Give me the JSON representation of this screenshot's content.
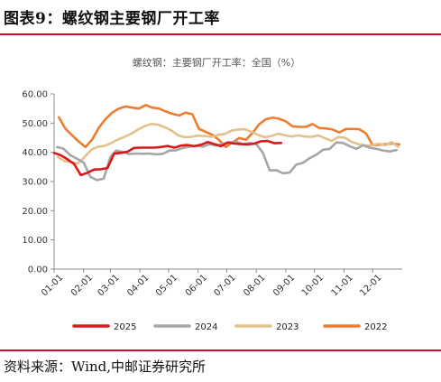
{
  "figure": {
    "title": "图表9：螺纹钢主要钢厂开工率",
    "source": "资料来源：Wind,中邮证券研究所"
  },
  "chart_data": {
    "type": "line",
    "title": "螺纹钢：主要钢厂开工率：全国（%）",
    "ylim": [
      0,
      60
    ],
    "yticks": [
      "0.00",
      "10.00",
      "20.00",
      "30.00",
      "40.00",
      "50.00",
      "60.00"
    ],
    "xlim": [
      "01-01",
      "12-31"
    ],
    "xticks": [
      "01-01",
      "02-01",
      "03-01",
      "04-01",
      "05-01",
      "06-01",
      "07-01",
      "08-01",
      "09-01",
      "10-01",
      "11-01",
      "12-01"
    ],
    "legend_position": "bottom",
    "grid": false,
    "series": [
      {
        "name": "2025",
        "color": "#d7191c",
        "x": [
          "01-01",
          "01-08",
          "01-15",
          "01-22",
          "01-29",
          "02-05",
          "02-12",
          "02-19",
          "02-26",
          "03-05",
          "03-12",
          "03-19",
          "03-26",
          "04-02",
          "04-09",
          "04-16",
          "04-23",
          "04-30",
          "05-07",
          "05-14",
          "05-21",
          "05-28",
          "06-04",
          "06-11",
          "06-18",
          "06-25",
          "07-02",
          "07-09",
          "07-16",
          "07-23",
          "07-30",
          "08-06",
          "08-13",
          "08-20",
          "08-27"
        ],
        "values": [
          39.8,
          39.0,
          37.6,
          36.0,
          32.2,
          33.0,
          34.1,
          34.2,
          34.6,
          39.6,
          39.8,
          40.2,
          41.5,
          41.6,
          41.6,
          41.6,
          41.8,
          42.2,
          41.6,
          42.3,
          42.5,
          42.1,
          42.6,
          43.5,
          42.8,
          42.1,
          43.4,
          43.0,
          42.8,
          42.7,
          43.0,
          43.8,
          43.9,
          43.1,
          43.2
        ]
      },
      {
        "name": "2024",
        "color": "#a6a6a6",
        "x": [
          "01-04",
          "01-11",
          "01-18",
          "01-25",
          "02-01",
          "02-08",
          "02-15",
          "02-22",
          "02-29",
          "03-07",
          "03-14",
          "03-21",
          "03-28",
          "04-04",
          "04-11",
          "04-18",
          "04-25",
          "05-02",
          "05-09",
          "05-16",
          "05-23",
          "05-30",
          "06-06",
          "06-13",
          "06-20",
          "06-27",
          "07-04",
          "07-11",
          "07-18",
          "07-25",
          "08-01",
          "08-08",
          "08-15",
          "08-22",
          "08-29",
          "09-05",
          "09-12",
          "09-19",
          "09-26",
          "10-03",
          "10-10",
          "10-17",
          "10-24",
          "10-31",
          "11-07",
          "11-14",
          "11-21",
          "11-28",
          "12-05",
          "12-12",
          "12-19",
          "12-26"
        ],
        "values": [
          41.8,
          41.2,
          39.0,
          37.8,
          36.5,
          31.6,
          30.5,
          31.0,
          38.4,
          40.6,
          40.1,
          39.4,
          39.6,
          39.5,
          39.6,
          39.3,
          39.5,
          40.6,
          40.7,
          41.5,
          41.9,
          42.3,
          41.9,
          42.8,
          42.3,
          42.9,
          43.4,
          43.6,
          42.8,
          43.2,
          42.8,
          39.8,
          33.8,
          33.9,
          32.8,
          33.1,
          35.8,
          36.4,
          38.0,
          39.2,
          40.9,
          41.2,
          43.4,
          43.2,
          42.1,
          41.2,
          42.4,
          41.6,
          41.2,
          40.6,
          40.3,
          40.8
        ]
      },
      {
        "name": "2023",
        "color": "#e2c18d",
        "x": [
          "01-05",
          "01-12",
          "01-19",
          "01-26",
          "02-02",
          "02-09",
          "02-16",
          "02-23",
          "03-02",
          "03-09",
          "03-16",
          "03-23",
          "03-30",
          "04-06",
          "04-13",
          "04-20",
          "04-27",
          "05-04",
          "05-11",
          "05-18",
          "05-25",
          "06-01",
          "06-08",
          "06-15",
          "06-22",
          "06-29",
          "07-06",
          "07-13",
          "07-20",
          "07-27",
          "08-03",
          "08-10",
          "08-17",
          "08-24",
          "08-31",
          "09-07",
          "09-14",
          "09-21",
          "09-28",
          "10-05",
          "10-12",
          "10-19",
          "10-26",
          "11-02",
          "11-09",
          "11-16",
          "11-23",
          "11-30",
          "12-07",
          "12-14",
          "12-21",
          "12-28"
        ],
        "values": [
          38.4,
          37.0,
          36.6,
          36.2,
          38.4,
          40.9,
          41.9,
          42.2,
          43.2,
          44.4,
          45.3,
          46.4,
          47.8,
          49.0,
          49.7,
          49.5,
          48.6,
          47.5,
          45.8,
          45.2,
          45.3,
          45.7,
          45.6,
          45.3,
          46.0,
          46.3,
          47.4,
          47.8,
          47.9,
          47.0,
          45.9,
          45.2,
          45.6,
          46.4,
          45.8,
          45.4,
          45.8,
          45.4,
          45.3,
          45.8,
          44.8,
          43.9,
          45.2,
          45.0,
          43.6,
          42.8,
          42.3,
          42.4,
          43.0,
          42.4,
          43.5,
          41.8
        ]
      },
      {
        "name": "2022",
        "color": "#ed7d31",
        "x": [
          "01-06",
          "01-13",
          "01-20",
          "01-27",
          "02-03",
          "02-10",
          "02-17",
          "02-24",
          "03-03",
          "03-10",
          "03-17",
          "03-24",
          "03-31",
          "04-07",
          "04-14",
          "04-21",
          "04-28",
          "05-05",
          "05-12",
          "05-19",
          "05-26",
          "06-02",
          "06-09",
          "06-16",
          "06-23",
          "06-30",
          "07-07",
          "07-14",
          "07-21",
          "07-28",
          "08-04",
          "08-11",
          "08-18",
          "08-25",
          "09-01",
          "09-08",
          "09-15",
          "09-22",
          "09-29",
          "10-06",
          "10-13",
          "10-20",
          "10-27",
          "11-03",
          "11-10",
          "11-17",
          "11-24",
          "12-01",
          "12-08",
          "12-15",
          "12-22",
          "12-29"
        ],
        "values": [
          52.0,
          48.0,
          45.8,
          43.6,
          41.8,
          44.4,
          48.5,
          51.4,
          53.6,
          55.0,
          55.7,
          55.3,
          55.0,
          56.2,
          55.3,
          55.0,
          54.0,
          53.2,
          52.6,
          53.6,
          53.0,
          48.0,
          47.0,
          46.0,
          44.2,
          41.8,
          43.4,
          44.9,
          44.3,
          46.6,
          49.6,
          51.3,
          51.9,
          51.5,
          50.6,
          48.9,
          48.7,
          48.7,
          49.7,
          48.3,
          48.2,
          47.8,
          46.8,
          48.0,
          48.0,
          47.9,
          46.5,
          42.5,
          42.6,
          42.8,
          43.0,
          42.7
        ]
      }
    ]
  }
}
